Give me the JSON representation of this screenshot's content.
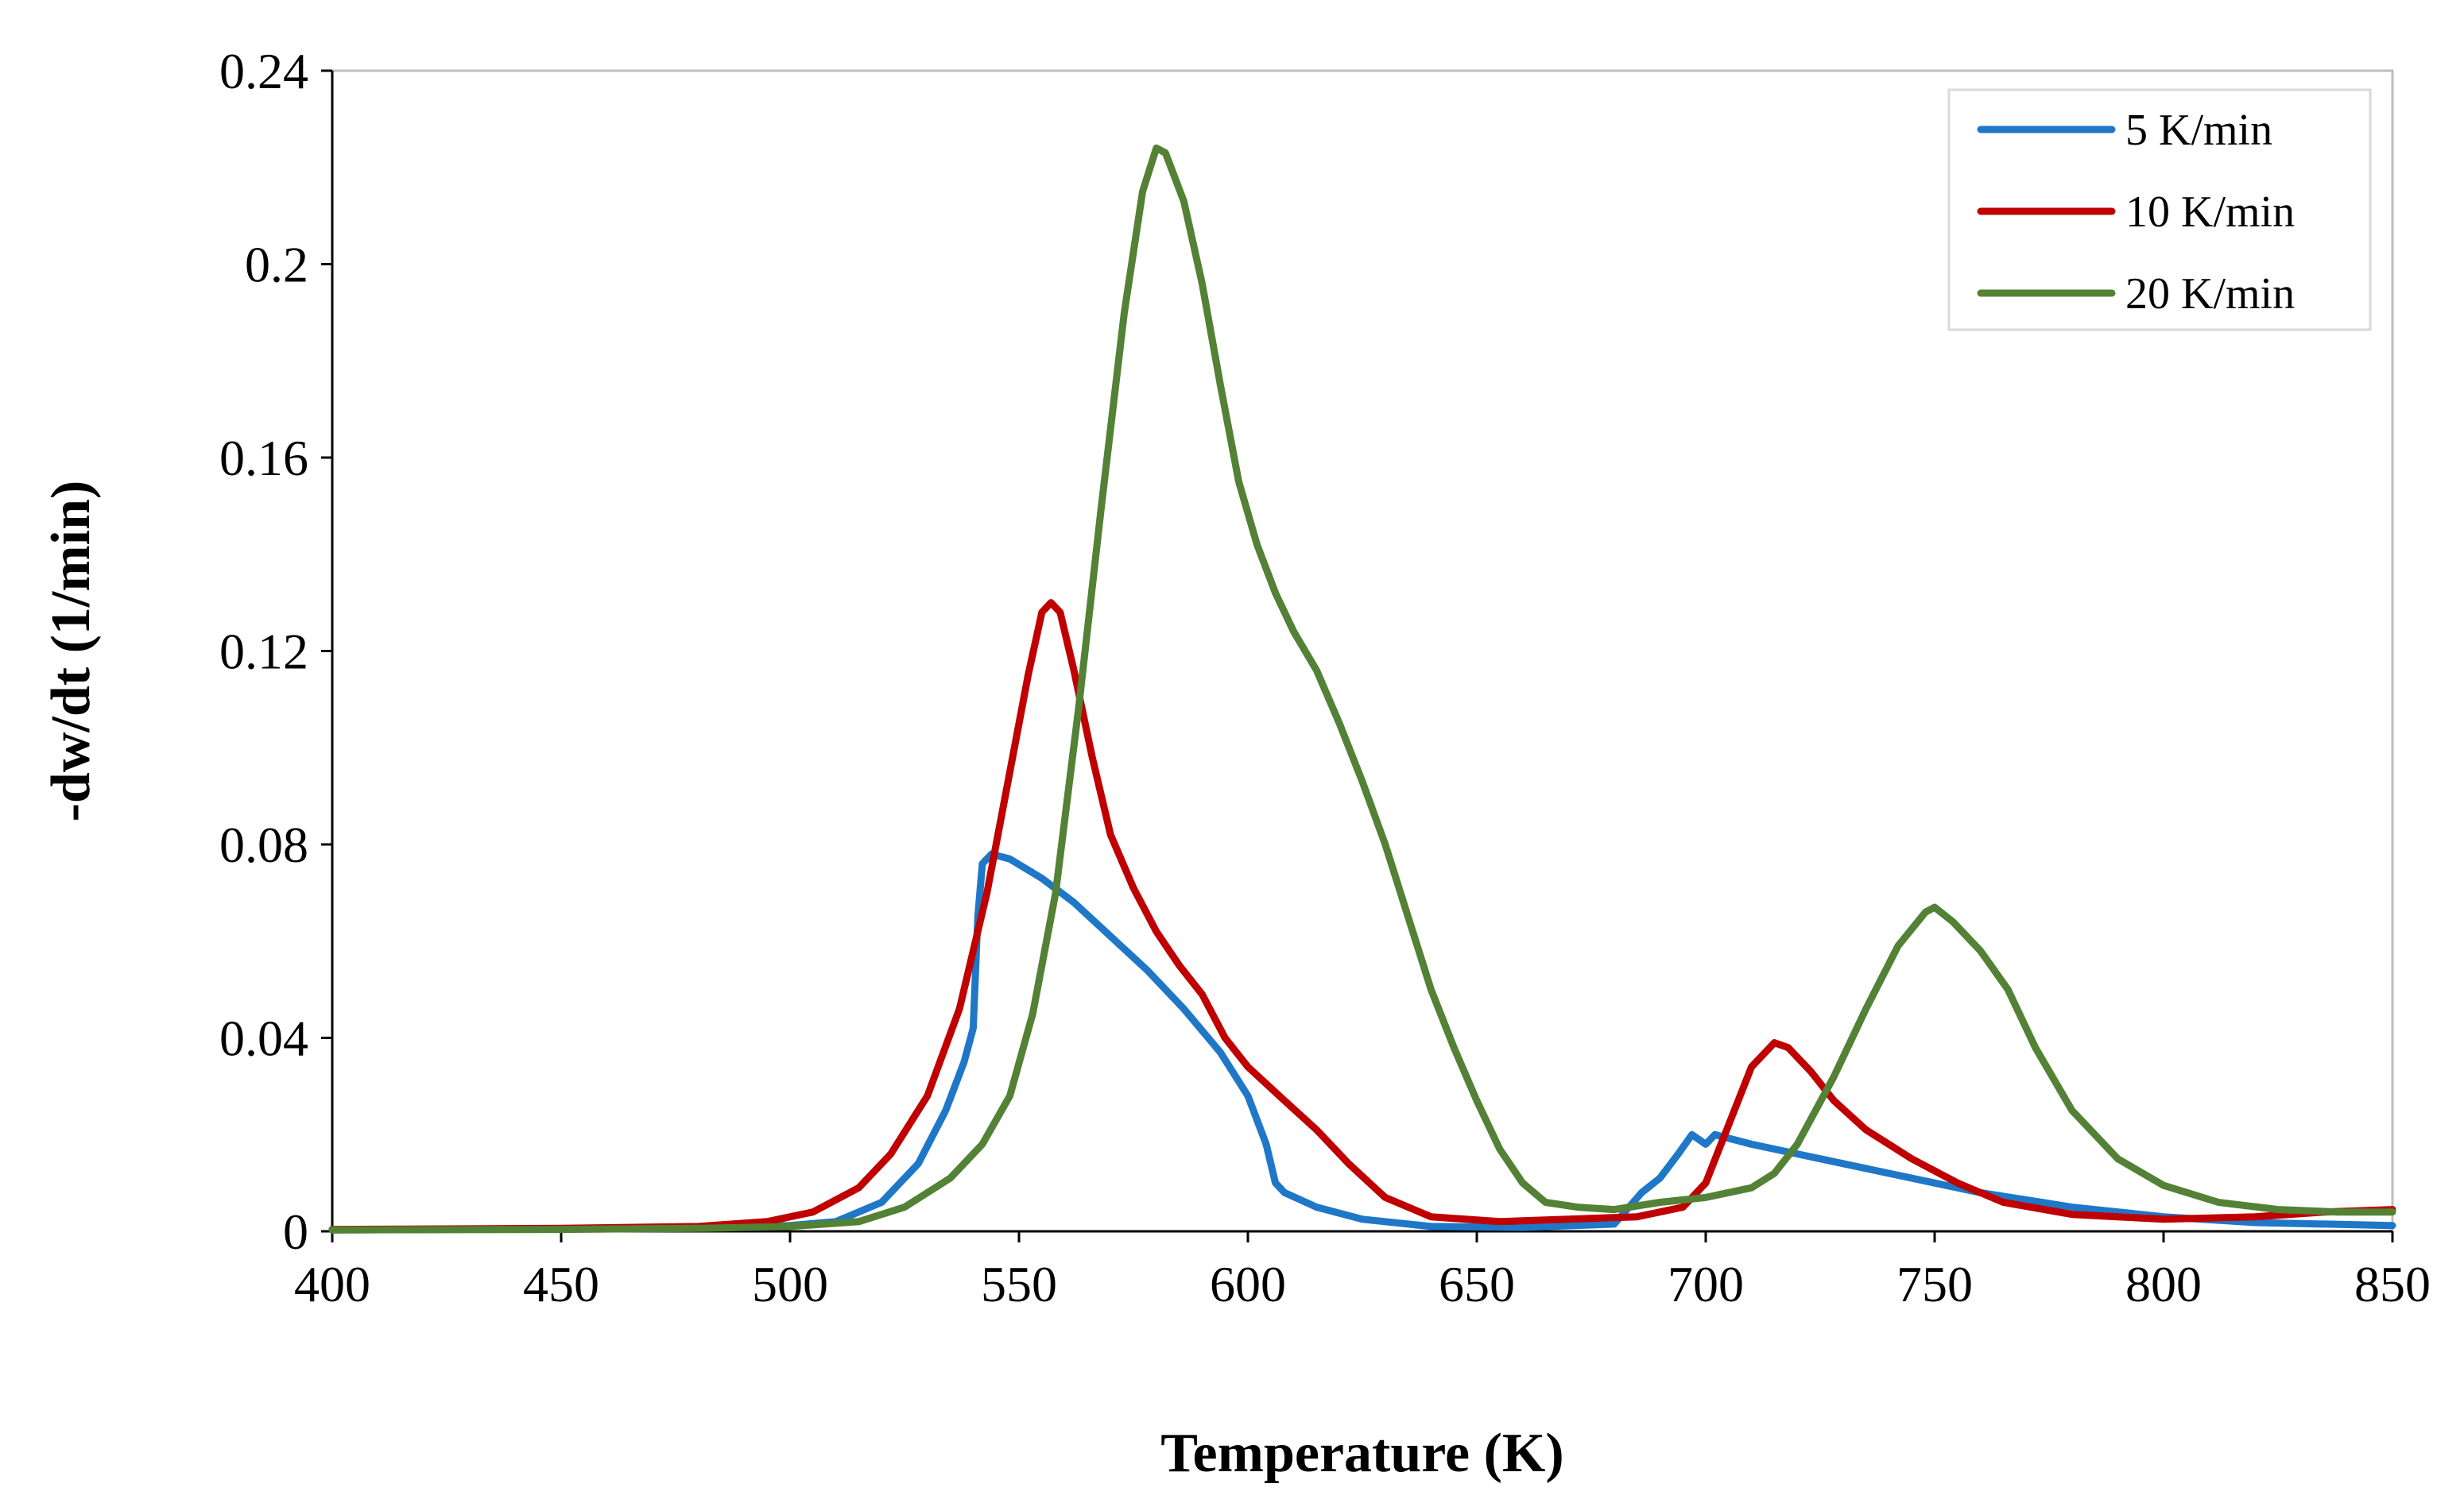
{
  "chart_data": {
    "type": "line",
    "title": "",
    "xlabel": "Temperature (K)",
    "ylabel": "-dw/dt (1/min)",
    "xlim": [
      400,
      850
    ],
    "ylim": [
      0,
      0.24
    ],
    "xticks": [
      400,
      450,
      500,
      550,
      600,
      650,
      700,
      750,
      800,
      850
    ],
    "xtick_labels": [
      "400",
      "450",
      "500",
      "550",
      "600",
      "650",
      "700",
      "750",
      "800",
      "850"
    ],
    "yticks": [
      0,
      0.04,
      0.08,
      0.12,
      0.16,
      0.2,
      0.24
    ],
    "ytick_labels": [
      "0",
      "0.04",
      "0.08",
      "0.12",
      "0.16",
      "0.2",
      "0.24"
    ],
    "grid": false,
    "legend_position": "top-right",
    "series": [
      {
        "name": "5 K/min",
        "color": "#1f77c8",
        "points": [
          [
            400,
            0.0003
          ],
          [
            450,
            0.0005
          ],
          [
            480,
            0.0008
          ],
          [
            500,
            0.0012
          ],
          [
            510,
            0.002
          ],
          [
            520,
            0.006
          ],
          [
            528,
            0.014
          ],
          [
            534,
            0.025
          ],
          [
            538,
            0.035
          ],
          [
            540,
            0.042
          ],
          [
            541,
            0.065
          ],
          [
            542,
            0.076
          ],
          [
            544,
            0.078
          ],
          [
            548,
            0.077
          ],
          [
            555,
            0.073
          ],
          [
            562,
            0.068
          ],
          [
            570,
            0.061
          ],
          [
            578,
            0.054
          ],
          [
            586,
            0.046
          ],
          [
            594,
            0.037
          ],
          [
            600,
            0.028
          ],
          [
            604,
            0.018
          ],
          [
            606,
            0.01
          ],
          [
            608,
            0.008
          ],
          [
            615,
            0.005
          ],
          [
            625,
            0.0025
          ],
          [
            640,
            0.001
          ],
          [
            660,
            0.0008
          ],
          [
            680,
            0.0015
          ],
          [
            686,
            0.008
          ],
          [
            690,
            0.011
          ],
          [
            694,
            0.016
          ],
          [
            697,
            0.02
          ],
          [
            700,
            0.018
          ],
          [
            702,
            0.02
          ],
          [
            710,
            0.018
          ],
          [
            725,
            0.015
          ],
          [
            740,
            0.012
          ],
          [
            760,
            0.008
          ],
          [
            780,
            0.005
          ],
          [
            800,
            0.003
          ],
          [
            820,
            0.0018
          ],
          [
            850,
            0.0012
          ]
        ]
      },
      {
        "name": "10 K/min",
        "color": "#c00000",
        "points": [
          [
            400,
            0.0004
          ],
          [
            450,
            0.0006
          ],
          [
            480,
            0.001
          ],
          [
            495,
            0.002
          ],
          [
            505,
            0.004
          ],
          [
            515,
            0.009
          ],
          [
            522,
            0.016
          ],
          [
            530,
            0.028
          ],
          [
            537,
            0.046
          ],
          [
            543,
            0.07
          ],
          [
            548,
            0.095
          ],
          [
            552,
            0.115
          ],
          [
            555,
            0.128
          ],
          [
            557,
            0.13
          ],
          [
            559,
            0.128
          ],
          [
            562,
            0.116
          ],
          [
            566,
            0.098
          ],
          [
            570,
            0.082
          ],
          [
            575,
            0.071
          ],
          [
            580,
            0.062
          ],
          [
            585,
            0.055
          ],
          [
            590,
            0.049
          ],
          [
            595,
            0.04
          ],
          [
            600,
            0.034
          ],
          [
            608,
            0.027
          ],
          [
            615,
            0.021
          ],
          [
            622,
            0.014
          ],
          [
            630,
            0.007
          ],
          [
            640,
            0.003
          ],
          [
            655,
            0.002
          ],
          [
            670,
            0.0025
          ],
          [
            685,
            0.003
          ],
          [
            695,
            0.005
          ],
          [
            700,
            0.01
          ],
          [
            705,
            0.022
          ],
          [
            710,
            0.034
          ],
          [
            715,
            0.039
          ],
          [
            718,
            0.038
          ],
          [
            723,
            0.033
          ],
          [
            728,
            0.027
          ],
          [
            735,
            0.021
          ],
          [
            745,
            0.015
          ],
          [
            755,
            0.01
          ],
          [
            765,
            0.006
          ],
          [
            780,
            0.0035
          ],
          [
            800,
            0.0025
          ],
          [
            820,
            0.003
          ],
          [
            835,
            0.004
          ],
          [
            850,
            0.0045
          ]
        ]
      },
      {
        "name": "20 K/min",
        "color": "#538135",
        "points": [
          [
            400,
            0.0003
          ],
          [
            450,
            0.0004
          ],
          [
            480,
            0.0006
          ],
          [
            500,
            0.001
          ],
          [
            515,
            0.002
          ],
          [
            525,
            0.005
          ],
          [
            535,
            0.011
          ],
          [
            542,
            0.018
          ],
          [
            548,
            0.028
          ],
          [
            553,
            0.045
          ],
          [
            558,
            0.07
          ],
          [
            563,
            0.108
          ],
          [
            568,
            0.15
          ],
          [
            573,
            0.19
          ],
          [
            577,
            0.215
          ],
          [
            580,
            0.224
          ],
          [
            582,
            0.223
          ],
          [
            586,
            0.213
          ],
          [
            590,
            0.196
          ],
          [
            594,
            0.175
          ],
          [
            598,
            0.155
          ],
          [
            602,
            0.142
          ],
          [
            606,
            0.132
          ],
          [
            610,
            0.124
          ],
          [
            615,
            0.116
          ],
          [
            620,
            0.105
          ],
          [
            625,
            0.093
          ],
          [
            630,
            0.08
          ],
          [
            635,
            0.065
          ],
          [
            640,
            0.05
          ],
          [
            645,
            0.038
          ],
          [
            650,
            0.027
          ],
          [
            655,
            0.017
          ],
          [
            660,
            0.01
          ],
          [
            665,
            0.006
          ],
          [
            672,
            0.005
          ],
          [
            680,
            0.0045
          ],
          [
            690,
            0.006
          ],
          [
            700,
            0.007
          ],
          [
            710,
            0.009
          ],
          [
            715,
            0.012
          ],
          [
            720,
            0.018
          ],
          [
            728,
            0.032
          ],
          [
            735,
            0.046
          ],
          [
            742,
            0.059
          ],
          [
            748,
            0.066
          ],
          [
            750,
            0.067
          ],
          [
            754,
            0.064
          ],
          [
            760,
            0.058
          ],
          [
            766,
            0.05
          ],
          [
            772,
            0.038
          ],
          [
            780,
            0.025
          ],
          [
            790,
            0.015
          ],
          [
            800,
            0.0095
          ],
          [
            812,
            0.006
          ],
          [
            825,
            0.0045
          ],
          [
            838,
            0.004
          ],
          [
            850,
            0.004
          ]
        ]
      }
    ]
  }
}
